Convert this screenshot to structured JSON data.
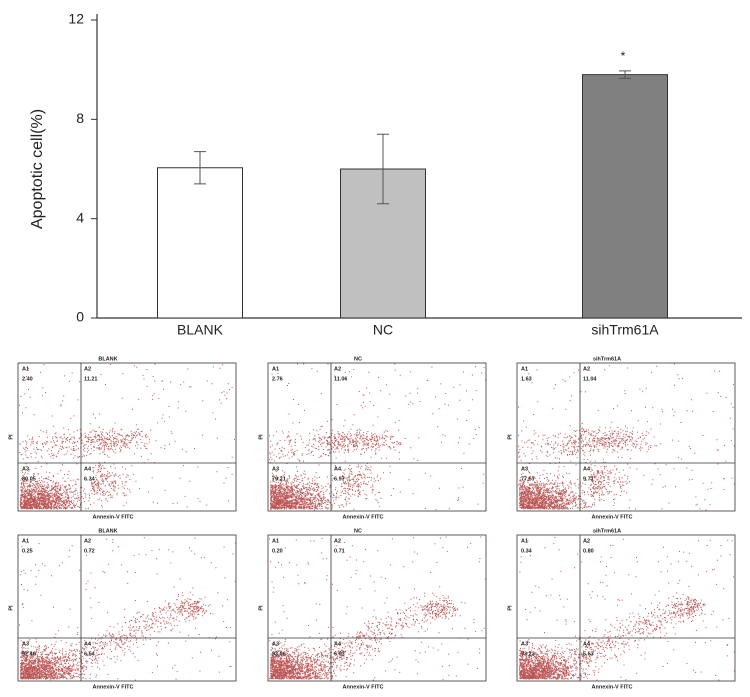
{
  "chart_data": {
    "type": "bar",
    "y_label": "Apoptotic cell(%)",
    "categories": [
      "BLANK",
      "NC",
      "sihTrm61A"
    ],
    "values": [
      6.05,
      6.0,
      9.8
    ],
    "errors": [
      0.65,
      1.4,
      0.15
    ],
    "colors": [
      "#ffffff",
      "#c0c0c0",
      "#808080"
    ],
    "annotations": [
      null,
      null,
      "*"
    ],
    "ylim": [
      0,
      12
    ],
    "yticks": [
      0,
      4,
      8,
      12
    ]
  },
  "flow_plots": [
    {
      "title": "BLANK",
      "x_label": "Annexin-V FITC",
      "y_label": "PI",
      "quadrants": [
        {
          "label": "A1",
          "value": "2.40"
        },
        {
          "label": "A2",
          "value": "11.21"
        },
        {
          "label": "A3",
          "value": "80.05"
        },
        {
          "label": "A4",
          "value": "6.34"
        }
      ]
    },
    {
      "title": "NC",
      "x_label": "Annexin-V FITC",
      "y_label": "PI",
      "quadrants": [
        {
          "label": "A1",
          "value": "2.76"
        },
        {
          "label": "A2",
          "value": "11.06"
        },
        {
          "label": "A3",
          "value": "79.21"
        },
        {
          "label": "A4",
          "value": "6.97"
        }
      ]
    },
    {
      "title": "sihTrm61A",
      "x_label": "Annexin-V FITC",
      "y_label": "PI",
      "quadrants": [
        {
          "label": "A1",
          "value": "1.63"
        },
        {
          "label": "A2",
          "value": "11.04"
        },
        {
          "label": "A3",
          "value": "77.57"
        },
        {
          "label": "A4",
          "value": "9.71"
        }
      ]
    },
    {
      "title": "BLANK",
      "x_label": "Annexin-V FITC",
      "y_label": "PI",
      "quadrants": [
        {
          "label": "A1",
          "value": "0.25"
        },
        {
          "label": "A2",
          "value": "0.72"
        },
        {
          "label": "A3",
          "value": "92.49"
        },
        {
          "label": "A4",
          "value": "6.54"
        }
      ]
    },
    {
      "title": "NC",
      "x_label": "Annexin-V FITC",
      "y_label": "PI",
      "quadrants": [
        {
          "label": "A1",
          "value": "0.20"
        },
        {
          "label": "A2",
          "value": "0.71"
        },
        {
          "label": "A3",
          "value": "93.06"
        },
        {
          "label": "A4",
          "value": "6.03"
        }
      ]
    },
    {
      "title": "sihTrm61A",
      "x_label": "Annexin-V FITC",
      "y_label": "PI",
      "quadrants": [
        {
          "label": "A1",
          "value": "0.34"
        },
        {
          "label": "A2",
          "value": "0.80"
        },
        {
          "label": "A3",
          "value": "93.23"
        },
        {
          "label": "A4",
          "value": "5.63"
        }
      ]
    }
  ]
}
